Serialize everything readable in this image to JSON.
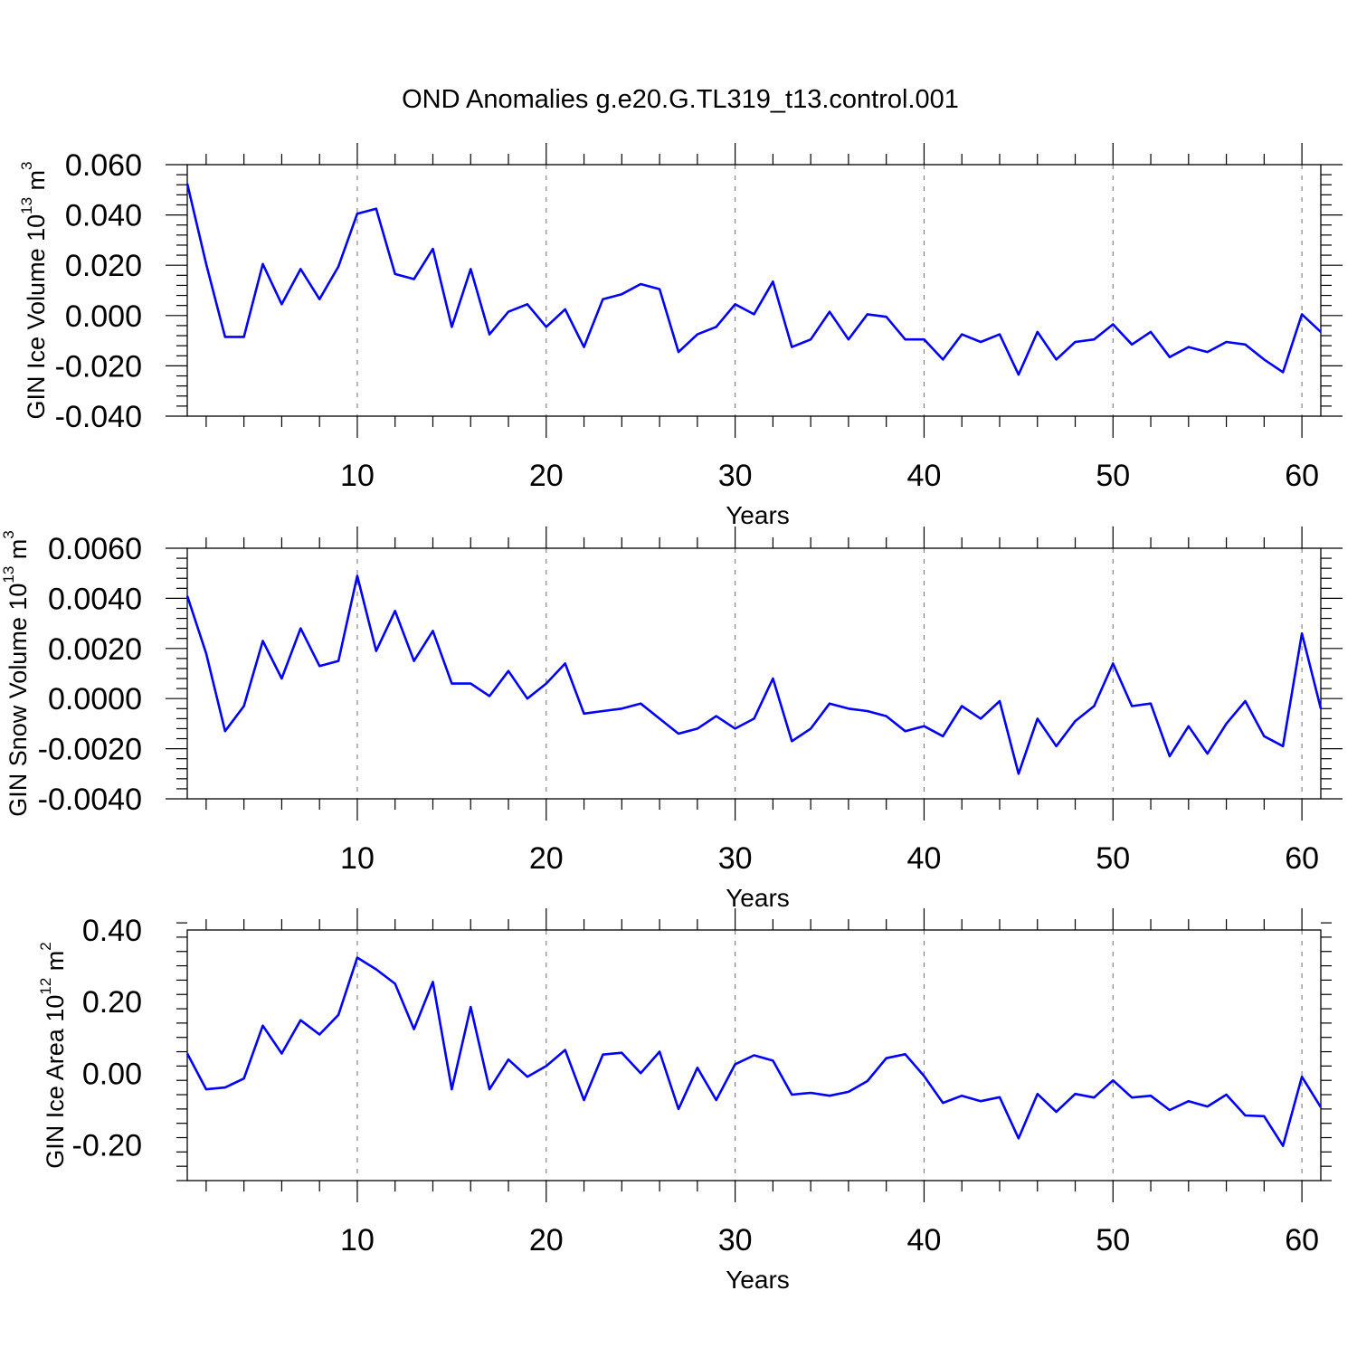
{
  "title": "OND Anomalies g.e20.G.TL319_t13.control.001",
  "colors": {
    "line": "#0000ff",
    "grid": "#7a7a7a",
    "axis": "#000000"
  },
  "chart_data": [
    {
      "type": "line",
      "ylabel": {
        "text": "GIN Ice Volume 10",
        "sup1": "13",
        "mid": " m",
        "sup2": "3"
      },
      "xlabel": "Years",
      "xlim": [
        1,
        61
      ],
      "ylim": [
        -0.04,
        0.06
      ],
      "xticks": [
        10,
        20,
        30,
        40,
        50,
        60
      ],
      "xtick_labels": [
        "10",
        "20",
        "30",
        "40",
        "50",
        "60"
      ],
      "yticks": [
        -0.04,
        -0.02,
        0.0,
        0.02,
        0.04,
        0.06
      ],
      "ytick_labels": [
        "-0.040",
        "-0.020",
        "0.000",
        "0.020",
        "0.040",
        "0.060"
      ],
      "grid": "vertical dashed at x ticks",
      "x": [
        1,
        2,
        3,
        4,
        5,
        6,
        7,
        8,
        9,
        10,
        11,
        12,
        13,
        14,
        15,
        16,
        17,
        18,
        19,
        20,
        21,
        22,
        23,
        24,
        25,
        26,
        27,
        28,
        29,
        30,
        31,
        32,
        33,
        34,
        35,
        36,
        37,
        38,
        39,
        40,
        41,
        42,
        43,
        44,
        45,
        46,
        47,
        48,
        49,
        50,
        51,
        52,
        53,
        54,
        55,
        56,
        57,
        58,
        59,
        60,
        61
      ],
      "values": [
        0.0525,
        0.0205,
        -0.0085,
        -0.0085,
        0.0205,
        0.0045,
        0.0185,
        0.0065,
        0.0195,
        0.0405,
        0.0425,
        0.0165,
        0.0145,
        0.0265,
        -0.0045,
        0.0185,
        -0.0075,
        0.0015,
        0.0045,
        -0.0045,
        0.0025,
        -0.0125,
        0.0065,
        0.0085,
        0.0125,
        0.0105,
        -0.0145,
        -0.0075,
        -0.0045,
        0.0045,
        0.0005,
        0.0135,
        -0.0125,
        -0.0095,
        0.0015,
        -0.0095,
        0.0005,
        -0.0005,
        -0.0095,
        -0.0095,
        -0.0175,
        -0.0075,
        -0.0105,
        -0.0075,
        -0.0235,
        -0.0065,
        -0.0175,
        -0.0105,
        -0.0095,
        -0.0035,
        -0.0115,
        -0.0065,
        -0.0165,
        -0.0125,
        -0.0145,
        -0.0105,
        -0.0115,
        -0.0175,
        -0.0225,
        0.0005,
        -0.0065
      ]
    },
    {
      "type": "line",
      "ylabel": {
        "text": "GIN Snow Volume 10",
        "sup1": "13",
        "mid": " m",
        "sup2": "3"
      },
      "xlabel": "Years",
      "xlim": [
        1,
        61
      ],
      "ylim": [
        -0.004,
        0.006
      ],
      "xticks": [
        10,
        20,
        30,
        40,
        50,
        60
      ],
      "xtick_labels": [
        "10",
        "20",
        "30",
        "40",
        "50",
        "60"
      ],
      "yticks": [
        -0.004,
        -0.002,
        0.0,
        0.002,
        0.004,
        0.006
      ],
      "ytick_labels": [
        "-0.0040",
        "-0.0020",
        "0.0000",
        "0.0020",
        "0.0040",
        "0.0060"
      ],
      "grid": "vertical dashed at x ticks",
      "x": [
        1,
        2,
        3,
        4,
        5,
        6,
        7,
        8,
        9,
        10,
        11,
        12,
        13,
        14,
        15,
        16,
        17,
        18,
        19,
        20,
        21,
        22,
        23,
        24,
        25,
        26,
        27,
        28,
        29,
        30,
        31,
        32,
        33,
        34,
        35,
        36,
        37,
        38,
        39,
        40,
        41,
        42,
        43,
        44,
        45,
        46,
        47,
        48,
        49,
        50,
        51,
        52,
        53,
        54,
        55,
        56,
        57,
        58,
        59,
        60,
        61
      ],
      "values": [
        0.0041,
        0.0018,
        -0.0013,
        -0.0003,
        0.0023,
        0.0008,
        0.0028,
        0.0013,
        0.0015,
        0.0049,
        0.0019,
        0.0035,
        0.0015,
        0.0027,
        0.0006,
        0.0006,
        0.0001,
        0.0011,
        0.0,
        0.0006,
        0.0014,
        -0.0006,
        -0.0005,
        -0.0004,
        -0.0002,
        -0.0008,
        -0.0014,
        -0.0012,
        -0.0007,
        -0.0012,
        -0.0008,
        0.0008,
        -0.0017,
        -0.0012,
        -0.0002,
        -0.0004,
        -0.0005,
        -0.0007,
        -0.0013,
        -0.0011,
        -0.0015,
        -0.0003,
        -0.0008,
        -0.0001,
        -0.003,
        -0.0008,
        -0.0019,
        -0.0009,
        -0.0003,
        0.0014,
        -0.0003,
        -0.0002,
        -0.0023,
        -0.0011,
        -0.0022,
        -0.001,
        -0.0001,
        -0.0015,
        -0.0019,
        0.0026,
        -0.0004
      ]
    },
    {
      "type": "line",
      "ylabel": {
        "text": "GIN Ice Area 10",
        "sup1": "12",
        "mid": " m",
        "sup2": "2"
      },
      "xlabel": "Years",
      "xlim": [
        1,
        61
      ],
      "ylim": [
        -0.3,
        0.4
      ],
      "xticks": [
        10,
        20,
        30,
        40,
        50,
        60
      ],
      "xtick_labels": [
        "10",
        "20",
        "30",
        "40",
        "50",
        "60"
      ],
      "yticks": [
        -0.2,
        0.0,
        0.2,
        0.4
      ],
      "ytick_labels": [
        "-0.20",
        "0.00",
        "0.20",
        "0.40"
      ],
      "grid": "vertical dashed at x ticks",
      "x": [
        1,
        2,
        3,
        4,
        5,
        6,
        7,
        8,
        9,
        10,
        11,
        12,
        13,
        14,
        15,
        16,
        17,
        18,
        19,
        20,
        21,
        22,
        23,
        24,
        25,
        26,
        27,
        28,
        29,
        30,
        31,
        32,
        33,
        34,
        35,
        36,
        37,
        38,
        39,
        40,
        41,
        42,
        43,
        44,
        45,
        46,
        47,
        48,
        49,
        50,
        51,
        52,
        53,
        54,
        55,
        56,
        57,
        58,
        59,
        60,
        61
      ],
      "values": [
        0.055,
        -0.045,
        -0.04,
        -0.015,
        0.133,
        0.055,
        0.148,
        0.108,
        0.163,
        0.323,
        0.29,
        0.25,
        0.123,
        0.255,
        -0.045,
        0.185,
        -0.045,
        0.038,
        -0.01,
        0.02,
        0.065,
        -0.075,
        0.052,
        0.057,
        0.0,
        0.06,
        -0.1,
        0.015,
        -0.075,
        0.025,
        0.05,
        0.035,
        -0.06,
        -0.055,
        -0.063,
        -0.052,
        -0.022,
        0.042,
        0.053,
        -0.008,
        -0.083,
        -0.063,
        -0.078,
        -0.067,
        -0.182,
        -0.058,
        -0.108,
        -0.058,
        -0.068,
        -0.02,
        -0.068,
        -0.063,
        -0.103,
        -0.078,
        -0.093,
        -0.06,
        -0.118,
        -0.12,
        -0.203,
        -0.01,
        -0.095
      ]
    }
  ]
}
